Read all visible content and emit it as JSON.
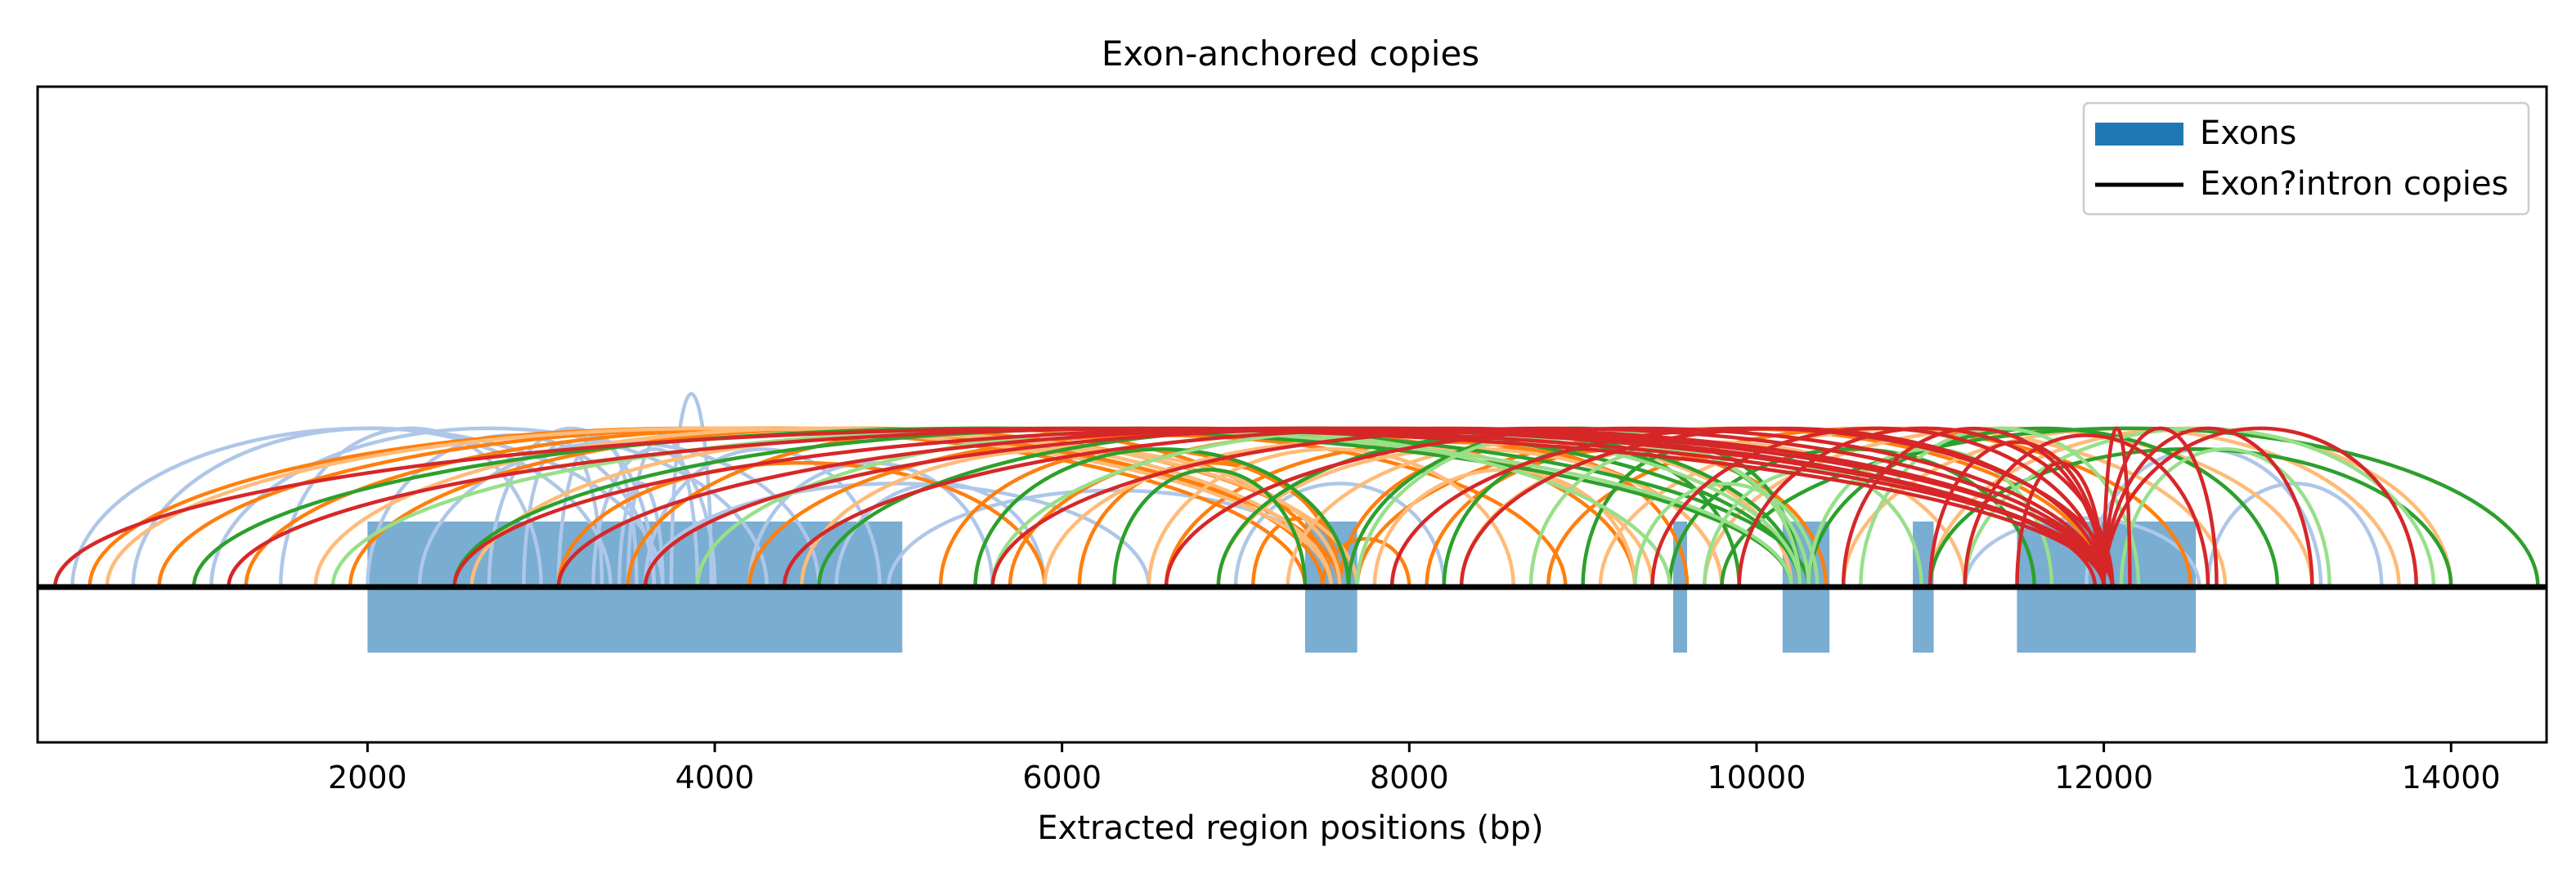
{
  "chart_data": {
    "type": "arc",
    "title": "Exon-anchored copies",
    "xlabel": "Extracted region positions (bp)",
    "ylabel": "",
    "xlim": [
      100,
      14550
    ],
    "ylim": [
      -0.45,
      1.45
    ],
    "xticks": [
      2000,
      4000,
      6000,
      8000,
      10000,
      12000,
      14000
    ],
    "xtick_labels": [
      "2000",
      "4000",
      "6000",
      "8000",
      "10000",
      "12000",
      "14000"
    ],
    "yticks": [],
    "grid": false,
    "legend": {
      "position": "top-right",
      "entries": [
        {
          "label": "Exons",
          "kind": "patch",
          "color": "#1f77b4"
        },
        {
          "label": "Exon?intron copies",
          "kind": "line",
          "color": "#000000"
        }
      ]
    },
    "baseline": 0,
    "exons": [
      {
        "start": 2000,
        "end": 5080
      },
      {
        "start": 7400,
        "end": 7700
      },
      {
        "start": 9520,
        "end": 9600
      },
      {
        "start": 10150,
        "end": 10420
      },
      {
        "start": 10900,
        "end": 11020
      },
      {
        "start": 11500,
        "end": 12530
      }
    ],
    "exon_color": "#1f77b4",
    "exon_height": [
      -0.19,
      0.19
    ],
    "arc_colors": {
      "light_blue": "#aec7e8",
      "orange": "#ff7f0e",
      "light_orange": "#ffbb78",
      "green": "#2ca02c",
      "light_green": "#98df8a",
      "red": "#d62728"
    },
    "arcs": [
      {
        "color": "light_blue",
        "from": 300,
        "to": 3700,
        "height": 0.46
      },
      {
        "color": "light_blue",
        "from": 650,
        "to": 3400,
        "height": 0.46
      },
      {
        "color": "light_blue",
        "from": 1100,
        "to": 4300,
        "height": 0.46
      },
      {
        "color": "light_blue",
        "from": 1500,
        "to": 3000,
        "height": 0.46
      },
      {
        "color": "light_blue",
        "from": 2000,
        "to": 3650,
        "height": 0.44
      },
      {
        "color": "light_blue",
        "from": 2300,
        "to": 4600,
        "height": 0.42
      },
      {
        "color": "light_blue",
        "from": 2700,
        "to": 3650,
        "height": 0.46
      },
      {
        "color": "light_blue",
        "from": 2900,
        "to": 3350,
        "height": 0.42
      },
      {
        "color": "light_blue",
        "from": 3100,
        "to": 3550,
        "height": 0.44
      },
      {
        "color": "light_blue",
        "from": 3300,
        "to": 4000,
        "height": 0.4
      },
      {
        "color": "light_blue",
        "from": 3450,
        "to": 3700,
        "height": 0.3
      },
      {
        "color": "light_blue",
        "from": 3500,
        "to": 3900,
        "height": 0.44
      },
      {
        "color": "light_blue",
        "from": 3750,
        "to": 3980,
        "height": 0.56
      },
      {
        "color": "light_blue",
        "from": 3600,
        "to": 4950,
        "height": 0.4
      },
      {
        "color": "light_blue",
        "from": 4200,
        "to": 5600,
        "height": 0.36
      },
      {
        "color": "light_blue",
        "from": 4700,
        "to": 5900,
        "height": 0.3
      },
      {
        "color": "light_blue",
        "from": 3600,
        "to": 6500,
        "height": 0.3
      },
      {
        "color": "light_blue",
        "from": 5000,
        "to": 7600,
        "height": 0.28
      },
      {
        "color": "light_blue",
        "from": 7000,
        "to": 8200,
        "height": 0.3
      },
      {
        "color": "light_blue",
        "from": 11200,
        "to": 12550,
        "height": 0.2
      },
      {
        "color": "light_blue",
        "from": 11900,
        "to": 13250,
        "height": 0.4
      },
      {
        "color": "light_blue",
        "from": 12600,
        "to": 13600,
        "height": 0.3
      },
      {
        "color": "orange",
        "from": 400,
        "to": 7400,
        "height": 0.46
      },
      {
        "color": "orange",
        "from": 800,
        "to": 7600,
        "height": 0.46
      },
      {
        "color": "orange",
        "from": 1300,
        "to": 7500,
        "height": 0.46
      },
      {
        "color": "orange",
        "from": 1900,
        "to": 7700,
        "height": 0.46
      },
      {
        "color": "orange",
        "from": 3100,
        "to": 5900,
        "height": 0.36
      },
      {
        "color": "orange",
        "from": 3500,
        "to": 7550,
        "height": 0.46
      },
      {
        "color": "orange",
        "from": 4200,
        "to": 8900,
        "height": 0.44
      },
      {
        "color": "orange",
        "from": 5300,
        "to": 7650,
        "height": 0.4
      },
      {
        "color": "orange",
        "from": 5700,
        "to": 9300,
        "height": 0.44
      },
      {
        "color": "orange",
        "from": 6100,
        "to": 7600,
        "height": 0.36
      },
      {
        "color": "orange",
        "from": 6600,
        "to": 9800,
        "height": 0.42
      },
      {
        "color": "orange",
        "from": 7100,
        "to": 7650,
        "height": 0.2
      },
      {
        "color": "orange",
        "from": 7500,
        "to": 8000,
        "height": 0.14
      },
      {
        "color": "orange",
        "from": 7600,
        "to": 9600,
        "height": 0.4
      },
      {
        "color": "orange",
        "from": 7700,
        "to": 12000,
        "height": 0.46
      },
      {
        "color": "orange",
        "from": 8100,
        "to": 10400,
        "height": 0.4
      },
      {
        "color": "orange",
        "from": 8800,
        "to": 12500,
        "height": 0.46
      },
      {
        "color": "light_orange",
        "from": 500,
        "to": 7550,
        "height": 0.46
      },
      {
        "color": "light_orange",
        "from": 1700,
        "to": 7550,
        "height": 0.46
      },
      {
        "color": "light_orange",
        "from": 2600,
        "to": 7700,
        "height": 0.44
      },
      {
        "color": "light_orange",
        "from": 4500,
        "to": 7600,
        "height": 0.4
      },
      {
        "color": "light_orange",
        "from": 5900,
        "to": 9400,
        "height": 0.42
      },
      {
        "color": "light_orange",
        "from": 6500,
        "to": 8600,
        "height": 0.4
      },
      {
        "color": "light_orange",
        "from": 6900,
        "to": 9800,
        "height": 0.4
      },
      {
        "color": "light_orange",
        "from": 7300,
        "to": 10200,
        "height": 0.42
      },
      {
        "color": "light_orange",
        "from": 7800,
        "to": 9300,
        "height": 0.34
      },
      {
        "color": "light_orange",
        "from": 8300,
        "to": 11200,
        "height": 0.42
      },
      {
        "color": "light_orange",
        "from": 9100,
        "to": 12700,
        "height": 0.46
      },
      {
        "color": "light_orange",
        "from": 9700,
        "to": 13200,
        "height": 0.46
      },
      {
        "color": "light_orange",
        "from": 10500,
        "to": 13700,
        "height": 0.46
      },
      {
        "color": "light_orange",
        "from": 11000,
        "to": 14000,
        "height": 0.46
      },
      {
        "color": "green",
        "from": 1000,
        "to": 10200,
        "height": 0.46
      },
      {
        "color": "green",
        "from": 2500,
        "to": 10300,
        "height": 0.46
      },
      {
        "color": "green",
        "from": 4600,
        "to": 10250,
        "height": 0.46
      },
      {
        "color": "green",
        "from": 5500,
        "to": 7650,
        "height": 0.4
      },
      {
        "color": "green",
        "from": 6300,
        "to": 7400,
        "height": 0.34
      },
      {
        "color": "green",
        "from": 6900,
        "to": 10250,
        "height": 0.44
      },
      {
        "color": "green",
        "from": 7650,
        "to": 10300,
        "height": 0.46
      },
      {
        "color": "green",
        "from": 8200,
        "to": 9900,
        "height": 0.4
      },
      {
        "color": "green",
        "from": 9000,
        "to": 10250,
        "height": 0.4
      },
      {
        "color": "green",
        "from": 9500,
        "to": 11600,
        "height": 0.4
      },
      {
        "color": "green",
        "from": 9800,
        "to": 14500,
        "height": 0.46
      },
      {
        "color": "green",
        "from": 10300,
        "to": 13000,
        "height": 0.46
      },
      {
        "color": "green",
        "from": 11000,
        "to": 14000,
        "height": 0.4
      },
      {
        "color": "light_green",
        "from": 1800,
        "to": 10200,
        "height": 0.46
      },
      {
        "color": "light_green",
        "from": 3900,
        "to": 9500,
        "height": 0.46
      },
      {
        "color": "light_green",
        "from": 5600,
        "to": 10250,
        "height": 0.46
      },
      {
        "color": "light_green",
        "from": 7700,
        "to": 10300,
        "height": 0.46
      },
      {
        "color": "light_green",
        "from": 8700,
        "to": 10250,
        "height": 0.4
      },
      {
        "color": "light_green",
        "from": 9300,
        "to": 10350,
        "height": 0.3
      },
      {
        "color": "light_green",
        "from": 9700,
        "to": 10950,
        "height": 0.34
      },
      {
        "color": "light_green",
        "from": 10300,
        "to": 11700,
        "height": 0.4
      },
      {
        "color": "light_green",
        "from": 10600,
        "to": 12200,
        "height": 0.46
      },
      {
        "color": "light_green",
        "from": 11200,
        "to": 13900,
        "height": 0.46
      },
      {
        "color": "light_green",
        "from": 12100,
        "to": 13300,
        "height": 0.4
      },
      {
        "color": "red",
        "from": 200,
        "to": 12000,
        "height": 0.46
      },
      {
        "color": "red",
        "from": 1200,
        "to": 12050,
        "height": 0.46
      },
      {
        "color": "red",
        "from": 2500,
        "to": 12000,
        "height": 0.46
      },
      {
        "color": "red",
        "from": 3100,
        "to": 11950,
        "height": 0.46
      },
      {
        "color": "red",
        "from": 3600,
        "to": 12050,
        "height": 0.46
      },
      {
        "color": "red",
        "from": 4400,
        "to": 12000,
        "height": 0.46
      },
      {
        "color": "red",
        "from": 5600,
        "to": 12000,
        "height": 0.46
      },
      {
        "color": "red",
        "from": 6600,
        "to": 12000,
        "height": 0.46
      },
      {
        "color": "red",
        "from": 7900,
        "to": 12050,
        "height": 0.46
      },
      {
        "color": "red",
        "from": 8300,
        "to": 12000,
        "height": 0.46
      },
      {
        "color": "red",
        "from": 9400,
        "to": 12000,
        "height": 0.46
      },
      {
        "color": "red",
        "from": 9900,
        "to": 12050,
        "height": 0.46
      },
      {
        "color": "red",
        "from": 10500,
        "to": 12000,
        "height": 0.46
      },
      {
        "color": "red",
        "from": 11000,
        "to": 12000,
        "height": 0.42
      },
      {
        "color": "red",
        "from": 11500,
        "to": 12000,
        "height": 0.36
      },
      {
        "color": "red",
        "from": 12000,
        "to": 12150,
        "height": 0.46
      },
      {
        "color": "red",
        "from": 12000,
        "to": 12650,
        "height": 0.46
      },
      {
        "color": "red",
        "from": 12000,
        "to": 13200,
        "height": 0.46
      },
      {
        "color": "red",
        "from": 12000,
        "to": 13800,
        "height": 0.46
      },
      {
        "color": "red",
        "from": 11200,
        "to": 12600,
        "height": 0.44
      }
    ]
  }
}
